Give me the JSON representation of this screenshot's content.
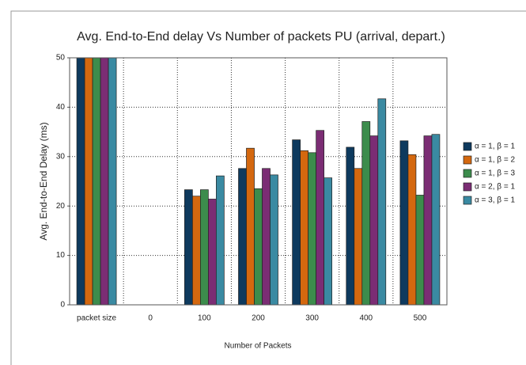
{
  "chart_data": {
    "type": "bar",
    "title": "Avg. End-to-End delay Vs Number of packets PU (arrival, depart.)",
    "x_label": "Number of Packets",
    "y_label": "Avg. End-to-End Delay (ms)",
    "categories": [
      "packet size",
      "0",
      "100",
      "200",
      "300",
      "400",
      "500"
    ],
    "series": [
      {
        "name": "α = 1, β = 1",
        "color": "#0e3a5e",
        "values": [
          50,
          0,
          23.3,
          27.6,
          33.4,
          31.9,
          33.2
        ]
      },
      {
        "name": "α = 1, β = 2",
        "color": "#d4680f",
        "values": [
          50,
          0,
          22,
          31.7,
          31.2,
          27.6,
          30.4
        ]
      },
      {
        "name": "α = 1, β = 3",
        "color": "#3c8c4c",
        "values": [
          50,
          0,
          23.3,
          23.5,
          30.8,
          37.1,
          22.2
        ]
      },
      {
        "name": "α = 2, β = 1",
        "color": "#7b2d74",
        "values": [
          50,
          0,
          21.4,
          27.6,
          35.3,
          34.2,
          34.2
        ]
      },
      {
        "name": "α = 3, β = 1",
        "color": "#3a8aa2",
        "values": [
          50,
          0,
          26.1,
          26.3,
          25.7,
          41.7,
          34.5
        ]
      }
    ],
    "ylim": [
      0,
      50
    ],
    "yticks": [
      0,
      10,
      20,
      30,
      40,
      50
    ],
    "grid": true,
    "legend": "right"
  }
}
